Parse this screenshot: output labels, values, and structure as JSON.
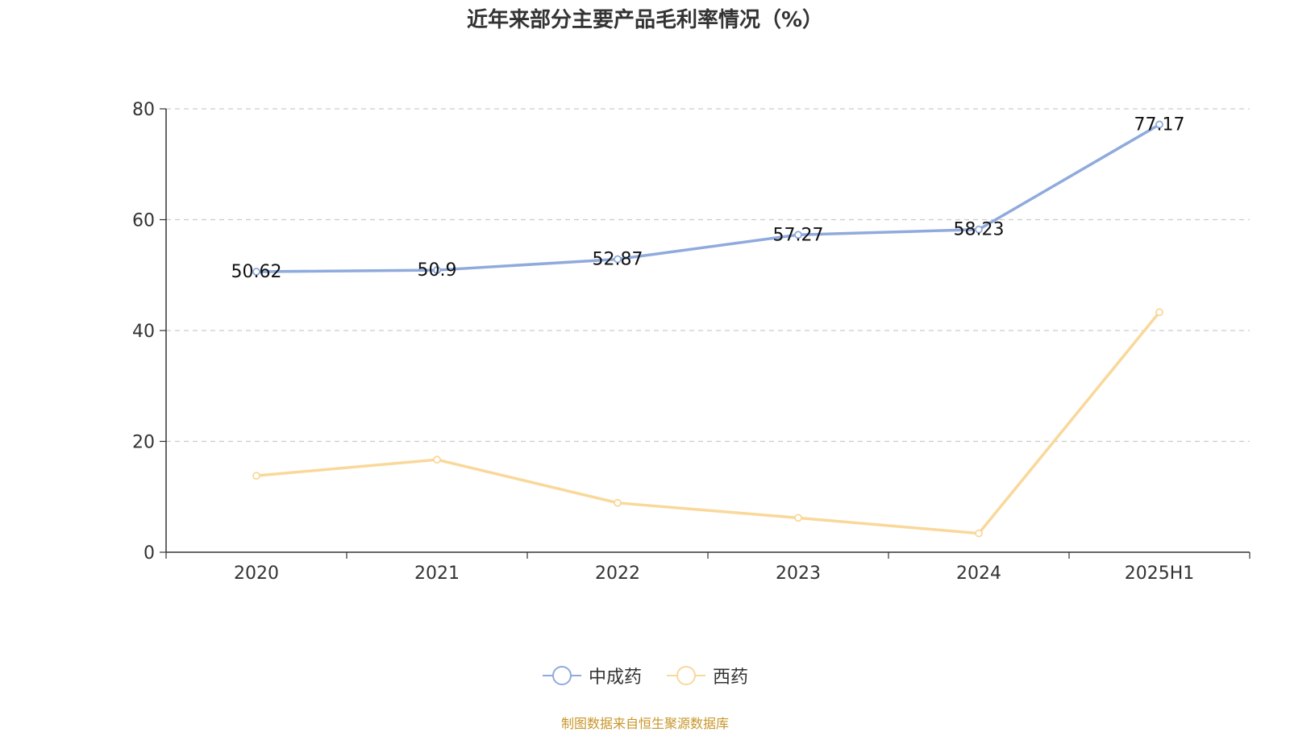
{
  "chart_data": {
    "type": "line",
    "title": "近年来部分主要产品毛利率情况（%）",
    "categories": [
      "2020",
      "2021",
      "2022",
      "2023",
      "2024",
      "2025H1"
    ],
    "ylim": [
      0,
      80
    ],
    "yticks": [
      0,
      20,
      40,
      60,
      80
    ],
    "grid": true,
    "legend_position": "bottom",
    "series": [
      {
        "name": "中成药",
        "color": "#8faadc",
        "values": [
          50.62,
          50.9,
          52.87,
          57.27,
          58.23,
          77.17
        ],
        "labels": [
          "50.62",
          "50.9",
          "52.87",
          "57.27",
          "58.23",
          "77.17"
        ]
      },
      {
        "name": "西药",
        "color": "#f9d89a",
        "values": [
          13.8,
          16.7,
          8.9,
          6.2,
          3.4,
          43.3
        ]
      }
    ]
  },
  "footer": {
    "source": "制图数据来自恒生聚源数据库"
  }
}
